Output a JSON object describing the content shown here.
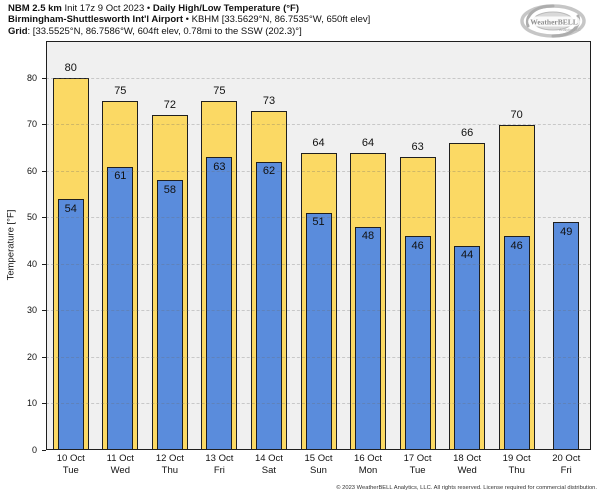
{
  "header": {
    "line1": {
      "bold1": "NBM 2.5 km",
      "normal1": " Init 17z 9 Oct 2023 • ",
      "bold2": "Daily High/Low Temperature (°F)"
    },
    "line2": {
      "bold1": "Birmingham-Shuttlesworth Int'l Airport",
      "normal1": " • KBHM [33.5629°N, 86.7535°W, 650ft elev]"
    },
    "line3": {
      "bold1": "Grid",
      "normal1": ": [33.5525°N, 86.7586°W, 604ft elev, 0.78mi to the SSW (202.3)°]"
    }
  },
  "logo": {
    "text": "WeatherBELL",
    "subtext": "Analytics LLC"
  },
  "footer": {
    "copyright": "© 2023 WeatherBELL Analytics, LLC. All rights reserved. License required for commercial distribution."
  },
  "chart_data": {
    "type": "bar",
    "title": "NBM 2.5 km Daily High/Low Temperature (°F) — Birmingham-Shuttlesworth Int'l Airport (KBHM)",
    "categories": [
      {
        "date": "10 Oct",
        "day": "Tue"
      },
      {
        "date": "11 Oct",
        "day": "Wed"
      },
      {
        "date": "12 Oct",
        "day": "Thu"
      },
      {
        "date": "13 Oct",
        "day": "Fri"
      },
      {
        "date": "14 Oct",
        "day": "Sat"
      },
      {
        "date": "15 Oct",
        "day": "Sun"
      },
      {
        "date": "16 Oct",
        "day": "Mon"
      },
      {
        "date": "17 Oct",
        "day": "Tue"
      },
      {
        "date": "18 Oct",
        "day": "Wed"
      },
      {
        "date": "19 Oct",
        "day": "Thu"
      },
      {
        "date": "20 Oct",
        "day": "Fri"
      }
    ],
    "series": [
      {
        "name": "Daily High",
        "values": [
          80,
          75,
          72,
          75,
          73,
          64,
          64,
          63,
          66,
          70,
          null
        ]
      },
      {
        "name": "Daily Low",
        "values": [
          54,
          61,
          58,
          63,
          62,
          51,
          48,
          46,
          44,
          46,
          49
        ]
      }
    ],
    "xlabel": "",
    "ylabel": "Temperature [°F]",
    "yticks": [
      0,
      10,
      20,
      30,
      40,
      50,
      60,
      70,
      80
    ],
    "ylim": [
      0,
      88
    ],
    "grid": "horizontal-dashed",
    "legend": "none",
    "colors": {
      "high": "#fbd964",
      "low": "#5a8cdc",
      "bar_border": "#1f1f1f",
      "plot_bg": "#f0f0f0",
      "grid": "rgba(110,110,110,0.30)"
    }
  }
}
